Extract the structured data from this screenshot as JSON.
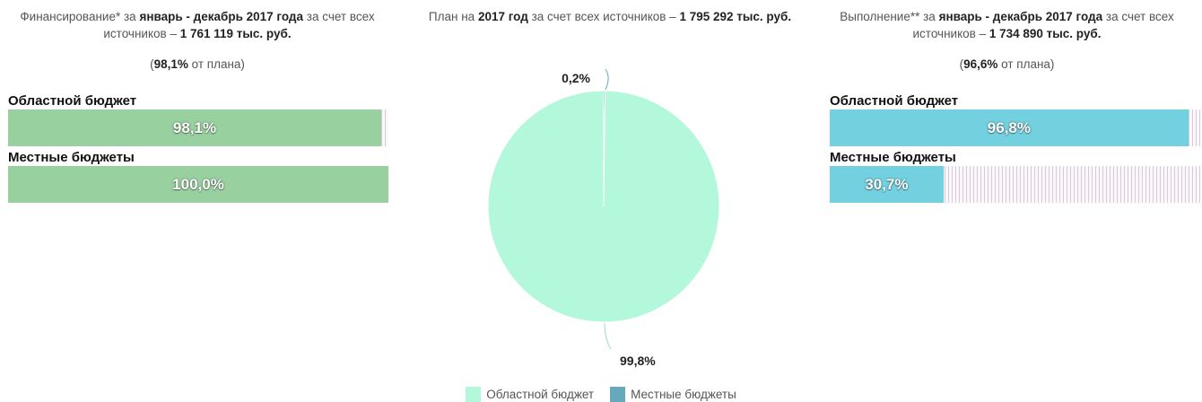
{
  "left": {
    "caption_pre": "Финансирование* за",
    "caption_period": "январь - декабрь 2017 года",
    "caption_mid": "за счет всех источников –",
    "caption_total": "1 761 119 тыс. руб.",
    "pct_open": "(",
    "pct_value": "98,1%",
    "pct_tail": "от плана)",
    "bars": [
      {
        "label": "Областной бюджет",
        "value": 98.1,
        "text": "98,1%"
      },
      {
        "label": "Местные бюджеты",
        "value": 100.0,
        "text": "100,0%"
      }
    ]
  },
  "center": {
    "caption_pre": "План на",
    "caption_year": "2017 год",
    "caption_mid": "за счет всех источников –",
    "caption_total": "1 795 292 тыс. руб."
  },
  "right": {
    "caption_pre": "Выполнение** за",
    "caption_period": "январь - декабрь 2017 года",
    "caption_mid": "за счет всех источников –",
    "caption_total": "1 734 890 тыс. руб.",
    "pct_open": "(",
    "pct_value": "96,6%",
    "pct_tail": "от плана)",
    "bars": [
      {
        "label": "Областной бюджет",
        "value": 96.8,
        "text": "96,8%"
      },
      {
        "label": "Местные бюджеты",
        "value": 30.7,
        "text": "30,7%"
      }
    ]
  },
  "colors": {
    "left_fill": "#99d0a0",
    "right_fill": "#72d0df",
    "pie_regional": "#b3f8da",
    "pie_local": "#66a9bd"
  },
  "chart_data": {
    "type": "pie",
    "slices": [
      {
        "name": "Областной бюджет",
        "value": 99.8,
        "label": "99,8%"
      },
      {
        "name": "Местные бюджеты",
        "value": 0.2,
        "label": "0,2%"
      }
    ],
    "legend_placement": "bottom"
  },
  "legend": [
    {
      "name": "Областной бюджет"
    },
    {
      "name": "Местные бюджеты"
    }
  ]
}
